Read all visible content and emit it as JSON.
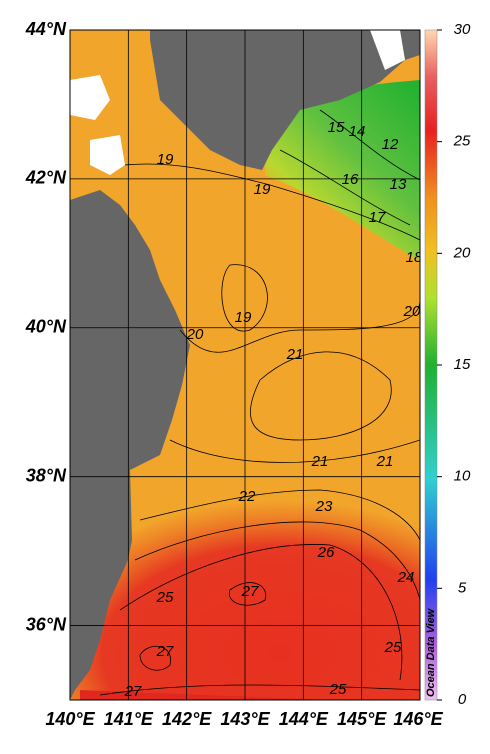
{
  "map": {
    "xlim": [
      140,
      146
    ],
    "ylim": [
      35,
      44
    ],
    "xticks": [
      {
        "value": 140,
        "label": "140°E"
      },
      {
        "value": 141,
        "label": "141°E"
      },
      {
        "value": 142,
        "label": "142°E"
      },
      {
        "value": 143,
        "label": "143°E"
      },
      {
        "value": 144,
        "label": "144°E"
      },
      {
        "value": 145,
        "label": "145°E"
      },
      {
        "value": 146,
        "label": "146°E"
      }
    ],
    "yticks": [
      {
        "value": 44,
        "label": "44°N"
      },
      {
        "value": 42,
        "label": "42°N"
      },
      {
        "value": 40,
        "label": "40°N"
      },
      {
        "value": 38,
        "label": "38°N"
      },
      {
        "value": 36,
        "label": "36°N"
      }
    ],
    "colorbar": {
      "range": [
        0,
        30
      ],
      "ticks": [
        0,
        5,
        10,
        15,
        20,
        25,
        30
      ]
    },
    "contour_labels": [
      19,
      19,
      15,
      14,
      12,
      16,
      13,
      17,
      18,
      19,
      20,
      20,
      21,
      21,
      21,
      22,
      23,
      26,
      24,
      25,
      27,
      25,
      27,
      27,
      25
    ],
    "watermark": "Ocean Data View"
  }
}
